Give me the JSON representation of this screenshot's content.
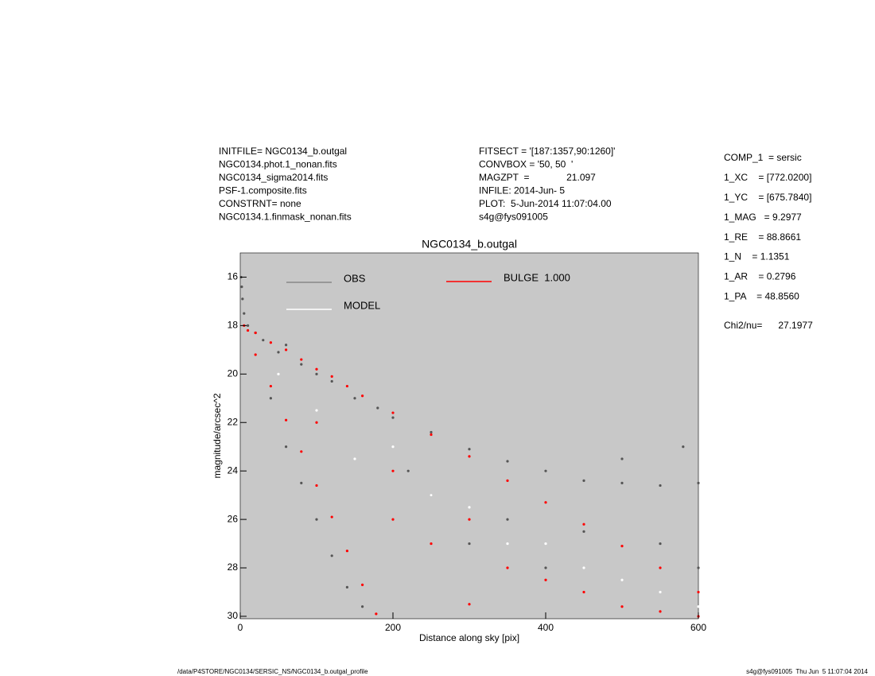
{
  "header": {
    "left": [
      "INITFILE= NGC0134_b.outgal",
      "NGC0134.phot.1_nonan.fits",
      "NGC0134_sigma2014.fits",
      "PSF-1.composite.fits",
      "CONSTRNT= none",
      "NGC0134.1.finmask_nonan.fits"
    ],
    "middle": [
      "FITSECT = '[187:1357,90:1260]'",
      "CONVBOX = '50, 50  '",
      "MAGZPT  =              21.097",
      "INFILE: 2014-Jun- 5",
      "PLOT:  5-Jun-2014 11:07:04.00",
      "s4g@fys091005"
    ]
  },
  "parameters": [
    "COMP_1  = sersic",
    "1_XC    = [772.0200]",
    "1_YC    = [675.7840]",
    "1_MAG   = 9.2977",
    "1_RE    = 88.8661",
    "1_N    = 1.1351",
    "1_AR    = 0.2796",
    "1_PA    = 48.8560"
  ],
  "chi2": "Chi2/nu=      27.1977",
  "footer": {
    "left": "/data/P4STORE/NGC0134/SERSIC_NS/NGC0134_b.outgal_profile",
    "right": "s4g@fys091005  Thu Jun  5 11:07:04 2014"
  },
  "chart_data": {
    "type": "scatter",
    "title": "NGC0134_b.outgal",
    "x_label": "Distance along sky [pix]",
    "y_label": "magnitude/arcsec^2",
    "xlim": [
      0,
      600
    ],
    "xticks": [
      0,
      200,
      400,
      600
    ],
    "ylim": [
      30.1,
      15
    ],
    "yticks": [
      16,
      18,
      20,
      22,
      24,
      26,
      28,
      30
    ],
    "background": "#c8c8c8",
    "series": [
      {
        "name": "OBS",
        "color": "#555555",
        "x": [
          1,
          2,
          3,
          5,
          10,
          20,
          30,
          50,
          60,
          80,
          100,
          120,
          150,
          180,
          200,
          250,
          300,
          350,
          400,
          450,
          500,
          550,
          600,
          40,
          60,
          80,
          100,
          120,
          140,
          160,
          250,
          350,
          450,
          550,
          600,
          500,
          580,
          220,
          300,
          400
        ],
        "values": [
          16.0,
          16.4,
          16.9,
          17.5,
          18.0,
          18.3,
          18.6,
          19.1,
          18.8,
          19.6,
          20.0,
          20.3,
          21.0,
          21.4,
          21.8,
          22.4,
          23.1,
          23.6,
          24.0,
          24.4,
          24.5,
          24.6,
          24.5,
          21.0,
          23.0,
          24.5,
          26.0,
          27.5,
          28.8,
          29.6,
          25.0,
          26.0,
          26.5,
          27.0,
          28.0,
          23.5,
          23.0,
          24.0,
          27.0,
          28.0
        ]
      },
      {
        "name": "MODEL",
        "color": "#ffffff",
        "x": [
          50,
          100,
          150,
          200,
          250,
          300,
          350,
          400,
          450,
          500,
          550,
          600
        ],
        "values": [
          20.0,
          21.5,
          23.5,
          23.0,
          25.0,
          25.5,
          27.0,
          27.0,
          28.0,
          28.5,
          29.0,
          29.6
        ]
      },
      {
        "name": "BULGE  1.000",
        "color": "#ff0000",
        "x": [
          5,
          10,
          20,
          20,
          40,
          40,
          60,
          60,
          80,
          80,
          100,
          100,
          120,
          120,
          140,
          140,
          160,
          160,
          178,
          200,
          200,
          250,
          250,
          300,
          300,
          300,
          350,
          350,
          400,
          400,
          450,
          450,
          500,
          500,
          550,
          550,
          600,
          600,
          100,
          200
        ],
        "values": [
          18.0,
          18.2,
          18.3,
          19.2,
          18.7,
          20.5,
          19.0,
          21.9,
          19.4,
          23.2,
          19.8,
          24.6,
          20.1,
          25.9,
          20.5,
          27.3,
          20.9,
          28.7,
          29.9,
          21.6,
          26.0,
          22.5,
          27.0,
          23.4,
          26.0,
          29.5,
          24.4,
          28.0,
          25.3,
          28.5,
          26.2,
          29.0,
          27.1,
          29.6,
          28.0,
          29.8,
          29.0,
          30.0,
          22.0,
          24.0
        ]
      }
    ]
  }
}
